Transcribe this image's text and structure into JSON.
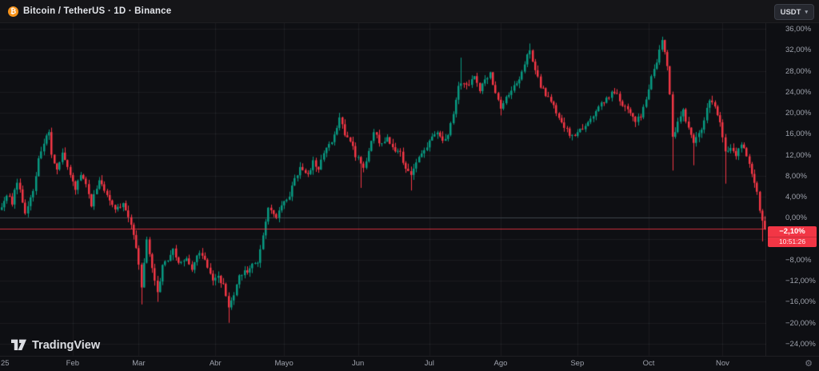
{
  "header": {
    "title": "Bitcoin / TetherUS · 1D · Binance",
    "symbol_icon": "bitcoin-icon",
    "coin_glyph": "₿",
    "unit_button": {
      "label": "USDT",
      "chevron": "▾"
    }
  },
  "watermark": {
    "brand": "TradingView",
    "logo_icon": "tradingview-logo-icon"
  },
  "price_axis": {
    "ticks": [
      {
        "pct": 36,
        "label": "36,00%"
      },
      {
        "pct": 32,
        "label": "32,00%"
      },
      {
        "pct": 28,
        "label": "28,00%"
      },
      {
        "pct": 24,
        "label": "24,00%"
      },
      {
        "pct": 20,
        "label": "20,00%"
      },
      {
        "pct": 16,
        "label": "16,00%"
      },
      {
        "pct": 12,
        "label": "12,00%"
      },
      {
        "pct": 8,
        "label": "8,00%"
      },
      {
        "pct": 4,
        "label": "4,00%"
      },
      {
        "pct": 0,
        "label": "0,00%"
      },
      {
        "pct": -4,
        "label": "−4,00%"
      },
      {
        "pct": -8,
        "label": "−8,00%"
      },
      {
        "pct": -12,
        "label": "−12,00%"
      },
      {
        "pct": -16,
        "label": "−16,00%"
      },
      {
        "pct": -20,
        "label": "−20,00%"
      },
      {
        "pct": -24,
        "label": "−24,00%"
      }
    ],
    "badge": {
      "value": "−2,10%",
      "countdown": "10:51:26",
      "bg_color": "#f23645"
    }
  },
  "time_axis": {
    "year_label": "25",
    "months": [
      {
        "label": "Feb",
        "i": 27
      },
      {
        "label": "Mar",
        "i": 52
      },
      {
        "label": "Abr",
        "i": 81
      },
      {
        "label": "Mayo",
        "i": 107
      },
      {
        "label": "Jun",
        "i": 135
      },
      {
        "label": "Jul",
        "i": 162
      },
      {
        "label": "Ago",
        "i": 189
      },
      {
        "label": "Sep",
        "i": 218
      },
      {
        "label": "Oct",
        "i": 245
      },
      {
        "label": "Nov",
        "i": 273
      }
    ],
    "settings_icon": "gear-icon",
    "gear_glyph": "⚙"
  },
  "chart_data": {
    "type": "candlestick",
    "title": "Bitcoin / TetherUS",
    "interval": "1D",
    "exchange": "Binance",
    "scale": "percentage-change",
    "unit": "%",
    "y_min": -24,
    "y_max": 36,
    "grid_step_pct": 4,
    "zero_line_pct": 0,
    "last_change_pct": -2.1,
    "n_candles": 290,
    "up_color": "#089981",
    "down_color": "#f23645",
    "background_color": "#0e0f13",
    "grid_color": "rgba(255,255,255,0.055)",
    "zero_line_color": "#3f434c",
    "anchors_close_pct": [
      [
        0,
        2
      ],
      [
        2,
        4.5
      ],
      [
        4,
        3
      ],
      [
        6,
        7
      ],
      [
        9,
        1
      ],
      [
        12,
        5
      ],
      [
        14,
        11
      ],
      [
        16,
        14.5
      ],
      [
        18,
        16
      ],
      [
        19,
        12
      ],
      [
        21,
        9.5
      ],
      [
        23,
        12.5
      ],
      [
        25,
        10
      ],
      [
        28,
        5.5
      ],
      [
        30,
        8
      ],
      [
        32,
        6
      ],
      [
        34,
        2.5
      ],
      [
        37,
        7
      ],
      [
        40,
        4
      ],
      [
        43,
        1.5
      ],
      [
        46,
        2.5
      ],
      [
        48,
        0
      ],
      [
        50,
        -3.5
      ],
      [
        52,
        -9
      ],
      [
        53,
        -13.5
      ],
      [
        55,
        -4
      ],
      [
        57,
        -9.5
      ],
      [
        59,
        -14.5
      ],
      [
        61,
        -9
      ],
      [
        63,
        -8
      ],
      [
        65,
        -6
      ],
      [
        67,
        -8.5
      ],
      [
        70,
        -7.5
      ],
      [
        72,
        -9.5
      ],
      [
        75,
        -6.5
      ],
      [
        78,
        -9
      ],
      [
        80,
        -12
      ],
      [
        82,
        -11
      ],
      [
        84,
        -13
      ],
      [
        86,
        -17.5
      ],
      [
        88,
        -14.5
      ],
      [
        90,
        -11
      ],
      [
        93,
        -10
      ],
      [
        95,
        -8.5
      ],
      [
        97,
        -9
      ],
      [
        99,
        -3
      ],
      [
        101,
        2
      ],
      [
        104,
        0.5
      ],
      [
        106,
        2
      ],
      [
        109,
        4.5
      ],
      [
        111,
        7.5
      ],
      [
        113,
        9.5
      ],
      [
        116,
        8.5
      ],
      [
        118,
        10.5
      ],
      [
        120,
        9.5
      ],
      [
        123,
        13
      ],
      [
        126,
        15.5
      ],
      [
        128,
        19
      ],
      [
        130,
        16
      ],
      [
        132,
        14.5
      ],
      [
        134,
        12
      ],
      [
        137,
        9.5
      ],
      [
        139,
        13
      ],
      [
        141,
        16
      ],
      [
        144,
        14
      ],
      [
        146,
        15
      ],
      [
        149,
        13
      ],
      [
        151,
        12.5
      ],
      [
        153,
        9
      ],
      [
        155,
        7.8
      ],
      [
        157,
        10.5
      ],
      [
        160,
        12.5
      ],
      [
        162,
        15
      ],
      [
        165,
        16.5
      ],
      [
        167,
        14.8
      ],
      [
        169,
        15.5
      ],
      [
        171,
        20
      ],
      [
        173,
        25.5
      ],
      [
        175,
        26
      ],
      [
        177,
        25
      ],
      [
        179,
        27
      ],
      [
        181,
        24.5
      ],
      [
        183,
        26
      ],
      [
        185,
        27.5
      ],
      [
        187,
        24
      ],
      [
        189,
        21
      ],
      [
        192,
        23.5
      ],
      [
        194,
        25.5
      ],
      [
        196,
        26.5
      ],
      [
        198,
        29.5
      ],
      [
        200,
        32
      ],
      [
        202,
        28.5
      ],
      [
        204,
        25
      ],
      [
        206,
        23.5
      ],
      [
        208,
        22
      ],
      [
        210,
        20
      ],
      [
        212,
        18
      ],
      [
        215,
        16
      ],
      [
        217,
        15.2
      ],
      [
        219,
        16.5
      ],
      [
        221,
        17.5
      ],
      [
        223,
        18.5
      ],
      [
        225,
        20
      ],
      [
        227,
        21.5
      ],
      [
        229,
        23
      ],
      [
        232,
        24
      ],
      [
        234,
        22.5
      ],
      [
        236,
        21
      ],
      [
        238,
        19.5
      ],
      [
        240,
        18.5
      ],
      [
        242,
        19.5
      ],
      [
        244,
        23
      ],
      [
        246,
        26.5
      ],
      [
        248,
        30
      ],
      [
        250,
        33.5
      ],
      [
        252,
        29
      ],
      [
        253,
        24
      ],
      [
        254,
        15
      ],
      [
        256,
        18.5
      ],
      [
        258,
        20.5
      ],
      [
        260,
        17
      ],
      [
        262,
        14
      ],
      [
        264,
        16
      ],
      [
        266,
        18.5
      ],
      [
        268,
        22.5
      ],
      [
        270,
        21.5
      ],
      [
        272,
        18
      ],
      [
        274,
        12.5
      ],
      [
        276,
        13
      ],
      [
        278,
        12
      ],
      [
        280,
        14
      ],
      [
        282,
        12
      ],
      [
        284,
        8.5
      ],
      [
        286,
        5
      ],
      [
        287,
        1.5
      ],
      [
        288,
        -1
      ],
      [
        289,
        -2.1
      ]
    ],
    "wick_overrides": [
      [
        53,
        "low",
        -16.5
      ],
      [
        59,
        "low",
        -16
      ],
      [
        86,
        "low",
        -20
      ],
      [
        128,
        "high",
        19.6
      ],
      [
        136,
        "low",
        5.7
      ],
      [
        155,
        "low",
        5.2
      ],
      [
        174,
        "high",
        30.5
      ],
      [
        189,
        "low",
        19.5
      ],
      [
        200,
        "high",
        33.2
      ],
      [
        250,
        "high",
        34.5
      ],
      [
        254,
        "low",
        9
      ],
      [
        262,
        "low",
        10
      ],
      [
        274,
        "low",
        6.5
      ],
      [
        288,
        "low",
        -4.5
      ]
    ]
  }
}
